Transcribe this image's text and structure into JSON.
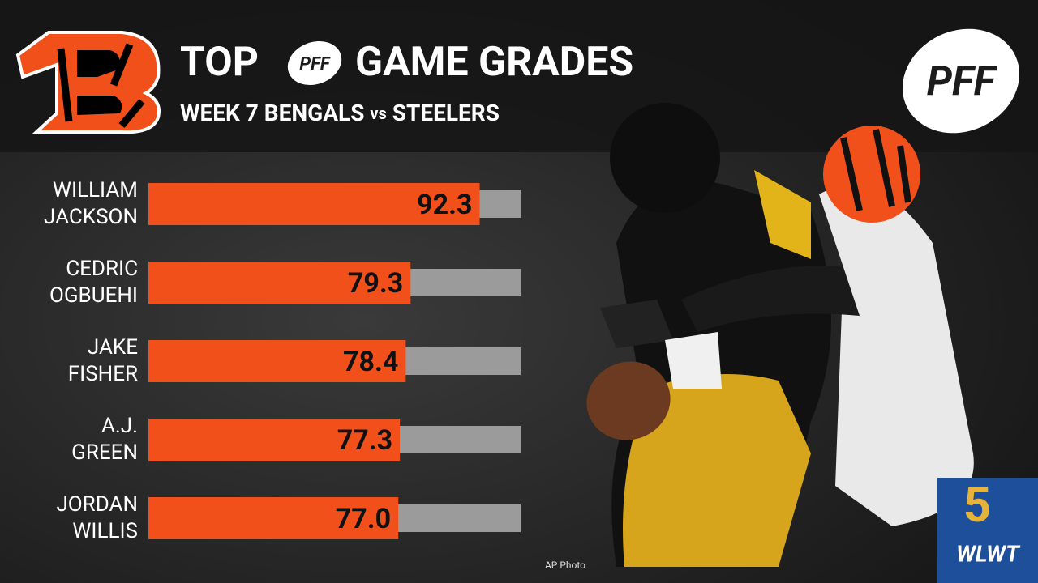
{
  "chart_data": {
    "type": "bar",
    "orientation": "horizontal",
    "title_parts": [
      "TOP",
      "GAME GRADES"
    ],
    "title_logo": "PFF",
    "subtitle_parts": [
      "WEEK 7 BENGALS",
      "vs",
      "STEELERS"
    ],
    "categories": [
      [
        "WILLIAM",
        "JACKSON"
      ],
      [
        "CEDRIC",
        "OGBUEHI"
      ],
      [
        "JAKE",
        "FISHER"
      ],
      [
        "A.J.",
        "GREEN"
      ],
      [
        "JORDAN",
        "WILLIS"
      ]
    ],
    "values": [
      92.3,
      79.3,
      78.4,
      77.3,
      77.0
    ],
    "value_labels": [
      "92.3",
      "79.3",
      "78.4",
      "77.3",
      "77.0"
    ],
    "color": "#f2501a",
    "track_color": "#9b9b9b",
    "xlim": [
      30,
      100
    ],
    "logo_text": "PFF",
    "credit": "AP Photo",
    "station_number": "5",
    "station_name": "WLWT"
  }
}
